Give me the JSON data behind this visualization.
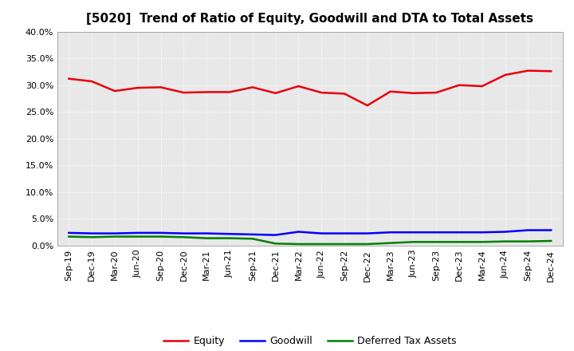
{
  "title": "[5020]  Trend of Ratio of Equity, Goodwill and DTA to Total Assets",
  "x_labels": [
    "Sep-19",
    "Dec-19",
    "Mar-20",
    "Jun-20",
    "Sep-20",
    "Dec-20",
    "Mar-21",
    "Jun-21",
    "Sep-21",
    "Dec-21",
    "Mar-22",
    "Jun-22",
    "Sep-22",
    "Dec-22",
    "Mar-23",
    "Jun-23",
    "Sep-23",
    "Dec-23",
    "Mar-24",
    "Jun-24",
    "Sep-24",
    "Dec-24"
  ],
  "equity": [
    31.2,
    30.7,
    28.9,
    29.5,
    29.6,
    28.6,
    28.7,
    28.7,
    29.6,
    28.5,
    29.8,
    28.6,
    28.4,
    26.2,
    28.8,
    28.5,
    28.6,
    30.0,
    29.8,
    31.9,
    32.7,
    32.6
  ],
  "goodwill": [
    2.4,
    2.3,
    2.3,
    2.4,
    2.4,
    2.3,
    2.3,
    2.2,
    2.1,
    2.0,
    2.6,
    2.3,
    2.3,
    2.3,
    2.5,
    2.5,
    2.5,
    2.5,
    2.5,
    2.6,
    2.9,
    2.9
  ],
  "dta": [
    1.7,
    1.6,
    1.7,
    1.7,
    1.7,
    1.6,
    1.4,
    1.4,
    1.3,
    0.4,
    0.3,
    0.3,
    0.3,
    0.3,
    0.5,
    0.7,
    0.7,
    0.7,
    0.7,
    0.8,
    0.8,
    0.9
  ],
  "equity_color": "#e8000d",
  "goodwill_color": "#0000ff",
  "dta_color": "#008000",
  "ylim": [
    0.0,
    40.0
  ],
  "yticks": [
    0.0,
    5.0,
    10.0,
    15.0,
    20.0,
    25.0,
    30.0,
    35.0,
    40.0
  ],
  "background_color": "#ffffff",
  "plot_bg_color": "#e8e8e8",
  "grid_color": "#ffffff",
  "title_fontsize": 11,
  "tick_fontsize": 8,
  "legend_labels": [
    "Equity",
    "Goodwill",
    "Deferred Tax Assets"
  ]
}
